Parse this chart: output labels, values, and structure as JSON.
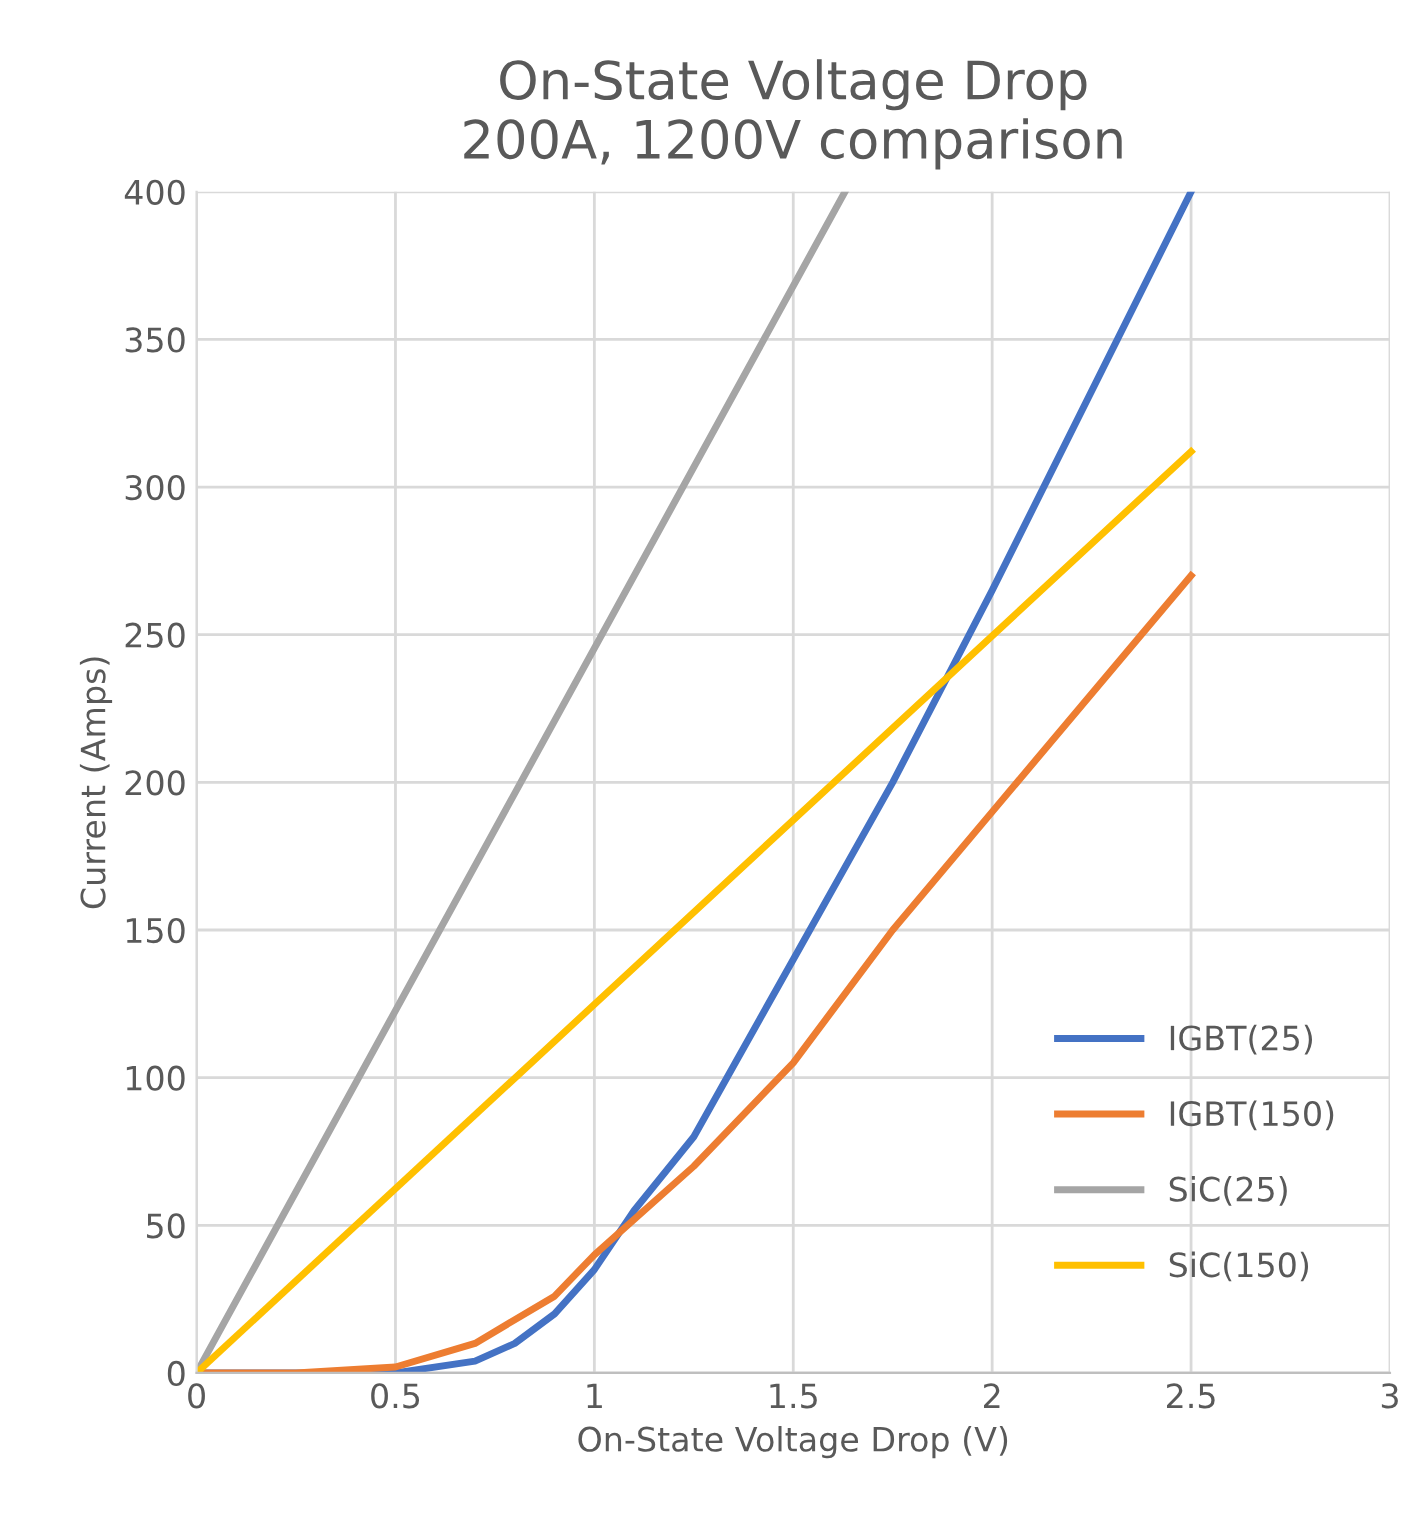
{
  "chart_data": {
    "type": "line",
    "title": "On-State Voltage Drop\n200A, 1200V comparison",
    "xlabel": "On-State Voltage Drop (V)",
    "ylabel": "Current (Amps)",
    "xlim": [
      0,
      3
    ],
    "xticks": [
      0,
      0.5,
      1,
      1.5,
      2,
      2.5,
      3
    ],
    "ylim": [
      0,
      400
    ],
    "yticks": [
      0,
      50,
      100,
      150,
      200,
      250,
      300,
      350,
      400
    ],
    "grid": true,
    "legend": "bottom right",
    "marker": "none",
    "line_style": "solid",
    "series": [
      {
        "name": "IGBT(25)",
        "color": "#4472c4",
        "x": [
          0,
          0.5,
          0.7,
          0.8,
          0.9,
          1,
          1.1,
          1.25,
          1.5,
          1.75,
          2,
          2.5
        ],
        "values": [
          0,
          0,
          4,
          10,
          20,
          35,
          55,
          80,
          140,
          200,
          265,
          400
        ]
      },
      {
        "name": "IGBT(150)",
        "color": "#ed7d31",
        "x": [
          0,
          0.25,
          0.5,
          0.7,
          0.9,
          1,
          1.25,
          1.5,
          1.75,
          2,
          2.5
        ],
        "values": [
          0,
          0,
          2,
          10,
          26,
          40,
          70,
          105,
          150,
          190,
          270
        ]
      },
      {
        "name": "SiC(25)",
        "color": "#a5a5a5",
        "x": [
          0,
          1.63
        ],
        "values": [
          0,
          400
        ]
      },
      {
        "name": "SiC(150)",
        "color": "#ffc000",
        "x": [
          0,
          2.5
        ],
        "values": [
          0,
          312
        ]
      }
    ]
  }
}
